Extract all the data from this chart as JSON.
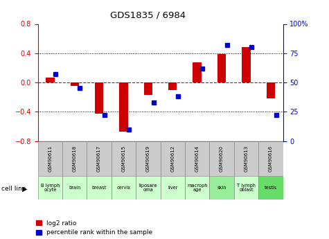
{
  "title": "GDS1835 / 6984",
  "samples": [
    "GSM90611",
    "GSM90618",
    "GSM90617",
    "GSM90615",
    "GSM90619",
    "GSM90612",
    "GSM90614",
    "GSM90620",
    "GSM90613",
    "GSM90616"
  ],
  "cell_lines": [
    "B lymph\nocyte",
    "brain",
    "breast",
    "cervix",
    "liposare\noma",
    "liver",
    "macroph\nage",
    "skin",
    "T lymph\noblast",
    "testis"
  ],
  "cell_colors": [
    "#ccffcc",
    "#ccffcc",
    "#ccffcc",
    "#ccffcc",
    "#ccffcc",
    "#ccffcc",
    "#ccffcc",
    "#99ee99",
    "#ccffcc",
    "#66dd66"
  ],
  "log2_ratio": [
    0.07,
    -0.05,
    -0.43,
    -0.67,
    -0.17,
    -0.1,
    0.27,
    0.39,
    0.48,
    -0.22
  ],
  "percentile_rank": [
    57,
    45,
    22,
    10,
    33,
    38,
    62,
    82,
    80,
    22
  ],
  "ylim_left": [
    -0.8,
    0.8
  ],
  "ylim_right": [
    0,
    100
  ],
  "yticks_left": [
    -0.8,
    -0.4,
    0.0,
    0.4,
    0.8
  ],
  "yticks_right": [
    0,
    25,
    50,
    75,
    100
  ],
  "bar_color_red": "#cc0000",
  "bar_color_blue": "#0000cc",
  "dotted_line_color": "#000000",
  "zero_line_color": "#cc0000",
  "background_color": "#ffffff",
  "bar_width": 0.35,
  "blue_marker_size": 5.0,
  "sample_box_color": "#cccccc",
  "cell_line_label_color": "#000000"
}
